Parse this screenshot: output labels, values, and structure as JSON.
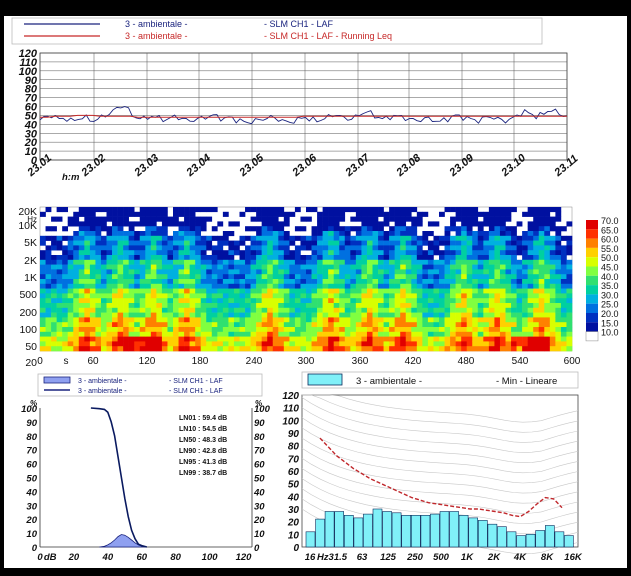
{
  "top_legend": [
    {
      "left": "3 - ambientale -",
      "right": "- SLM CH1 - LAF",
      "color": "#1a237e"
    },
    {
      "left": "3 - ambientale -",
      "right": "- SLM CH1 - LAF - Running Leq",
      "color": "#c62828"
    }
  ],
  "colorbar": {
    "labels": [
      "70.0",
      "65.0",
      "60.0",
      "55.0",
      "50.0",
      "45.0",
      "40.0",
      "35.0",
      "30.0",
      "25.0",
      "20.0",
      "15.0",
      "10.0"
    ],
    "colors": [
      "#e00000",
      "#ff3000",
      "#ff8000",
      "#ffd000",
      "#d8ff00",
      "#80ff40",
      "#30e070",
      "#00d0a0",
      "#00b0e0",
      "#0070e0",
      "#0030c0",
      "#0010a0",
      "#ffffff"
    ]
  },
  "hist_legend": [
    {
      "left": "3 - ambientale -",
      "right": "- SLM CH1 - LAF"
    },
    {
      "left": "3 - ambientale -",
      "right": "- SLM CH1 - LAF"
    }
  ],
  "ln_values": [
    "LN01 : 59.4 dB",
    "LN10 : 54.5 dB",
    "LN50 : 48.3 dB",
    "LN90 : 42.8 dB",
    "LN95 : 41.3 dB",
    "LN99 : 38.7 dB"
  ],
  "spec_legend": {
    "left": "3 - ambientale -",
    "right": "- Min - Lineare"
  },
  "chart_data": [
    {
      "type": "line",
      "x_tick_labels": [
        "23.01",
        "h:m",
        "23.02",
        "23.03",
        "23.04",
        "23.05",
        "23.06",
        "23.07",
        "23.08",
        "23.09",
        "23.10",
        "23.11"
      ],
      "y_tick_labels": [
        "0",
        "10",
        "20",
        "30",
        "40",
        "50",
        "60",
        "70",
        "80",
        "90",
        "100",
        "110",
        "120"
      ],
      "ylim": [
        0,
        120
      ],
      "series": [
        {
          "name": "- SLM CH1 - LAF",
          "color": "#1a237e",
          "values": [
            45,
            47,
            49,
            50,
            48,
            46,
            47,
            46,
            44,
            45,
            46,
            48,
            47,
            45,
            44,
            46,
            48,
            50,
            52,
            55,
            58,
            60,
            61,
            56,
            50,
            48,
            47,
            46,
            48,
            49,
            48,
            47,
            46,
            45,
            47,
            49,
            48,
            46,
            45,
            44,
            45,
            46,
            47,
            48,
            49,
            50,
            49,
            47,
            46,
            48,
            47,
            45,
            44,
            43,
            42,
            43,
            44,
            45,
            46,
            47,
            48,
            47,
            46,
            44,
            43,
            42,
            44,
            45,
            47,
            48,
            46,
            45,
            44,
            45,
            47,
            48,
            50,
            51,
            49,
            47,
            46,
            47,
            48,
            50,
            53,
            55,
            52,
            49,
            48,
            47,
            46,
            48,
            50,
            49,
            48,
            47,
            46,
            45,
            44,
            45,
            47,
            46,
            45,
            44,
            43,
            45,
            46,
            48,
            50,
            49,
            48,
            47,
            46,
            45,
            44,
            46,
            48,
            49,
            47,
            46,
            45,
            44,
            45,
            47,
            50,
            52,
            54,
            53,
            51,
            49,
            50,
            52,
            55,
            56,
            54,
            52,
            50,
            49
          ]
        },
        {
          "name": "- SLM CH1 - LAF - Running Leq",
          "color": "#c62828",
          "values": [
            48,
            48,
            49,
            49,
            49,
            50,
            50,
            50,
            49,
            49,
            49,
            49,
            49,
            48,
            48,
            48,
            48,
            48,
            48,
            48,
            48,
            48,
            48,
            48,
            48,
            48,
            48,
            48,
            48,
            48,
            48,
            48,
            48,
            48,
            48,
            49,
            49,
            49,
            49,
            49,
            49,
            49,
            49,
            49,
            49,
            49,
            49,
            49,
            49,
            49,
            49,
            49,
            49,
            49,
            49,
            49,
            49,
            49,
            49,
            49,
            49,
            49,
            49,
            49,
            49,
            49,
            49,
            49,
            49,
            49,
            49
          ]
        }
      ]
    },
    {
      "type": "heatmap",
      "x_tick_labels": [
        "0",
        "s",
        "60",
        "120",
        "180",
        "240",
        "300",
        "360",
        "420",
        "480",
        "540",
        "600"
      ],
      "y_tick_labels": [
        "20K",
        "Hz",
        "10K",
        "5K",
        "2K",
        "1K",
        "500",
        "200",
        "100",
        "50",
        "20"
      ],
      "xlim": [
        0,
        600
      ]
    },
    {
      "type": "area",
      "x_tick_labels": [
        "0",
        "dB",
        "20",
        "40",
        "60",
        "80",
        "100",
        "120"
      ],
      "y_tick_labels_left": [
        "0",
        "10",
        "20",
        "30",
        "40",
        "50",
        "60",
        "70",
        "80",
        "90",
        "100"
      ],
      "y_tick_labels_right": [
        "0",
        "10",
        "20",
        "30",
        "40",
        "50",
        "60",
        "70",
        "80",
        "90",
        "100"
      ],
      "y_unit": "%",
      "xlim": [
        0,
        125
      ],
      "ylim": [
        0,
        100
      ],
      "cumulative": [
        [
          30,
          100
        ],
        [
          35,
          99.5
        ],
        [
          38,
          99
        ],
        [
          40,
          97
        ],
        [
          42,
          90
        ],
        [
          44,
          80
        ],
        [
          46,
          65
        ],
        [
          48,
          50
        ],
        [
          50,
          35
        ],
        [
          52,
          22
        ],
        [
          54,
          12
        ],
        [
          56,
          6
        ],
        [
          58,
          2
        ],
        [
          60,
          1
        ],
        [
          63,
          0
        ]
      ],
      "distribution": [
        [
          35,
          0
        ],
        [
          38,
          0.5
        ],
        [
          40,
          1.5
        ],
        [
          42,
          3
        ],
        [
          44,
          5
        ],
        [
          46,
          7.5
        ],
        [
          48,
          9
        ],
        [
          50,
          8.5
        ],
        [
          52,
          7
        ],
        [
          54,
          5
        ],
        [
          56,
          3
        ],
        [
          58,
          1.5
        ],
        [
          60,
          0.5
        ],
        [
          62,
          0
        ]
      ]
    },
    {
      "type": "bar",
      "x_tick_labels": [
        "16",
        "Hz31.5",
        "63",
        "125",
        "250",
        "500",
        "1K",
        "2K",
        "4K",
        "8K",
        "16K"
      ],
      "y_tick_labels": [
        "0",
        "10",
        "20",
        "30",
        "40",
        "50",
        "60",
        "70",
        "80",
        "90",
        "100",
        "110",
        "120"
      ],
      "ylim": [
        0,
        120
      ],
      "values": [
        12,
        22,
        28,
        28,
        25,
        23,
        26,
        30,
        28,
        27,
        25,
        25,
        25,
        26,
        28,
        28,
        25,
        23,
        21,
        18,
        16,
        12,
        9,
        10,
        13,
        17,
        12,
        9
      ],
      "line_values": [
        86,
        79,
        72,
        67,
        62,
        58,
        54,
        51,
        48,
        45,
        42,
        39,
        37,
        35,
        34,
        33,
        32,
        31,
        30,
        30,
        29,
        28,
        27,
        25,
        24,
        28,
        34,
        39,
        38,
        31
      ]
    }
  ]
}
